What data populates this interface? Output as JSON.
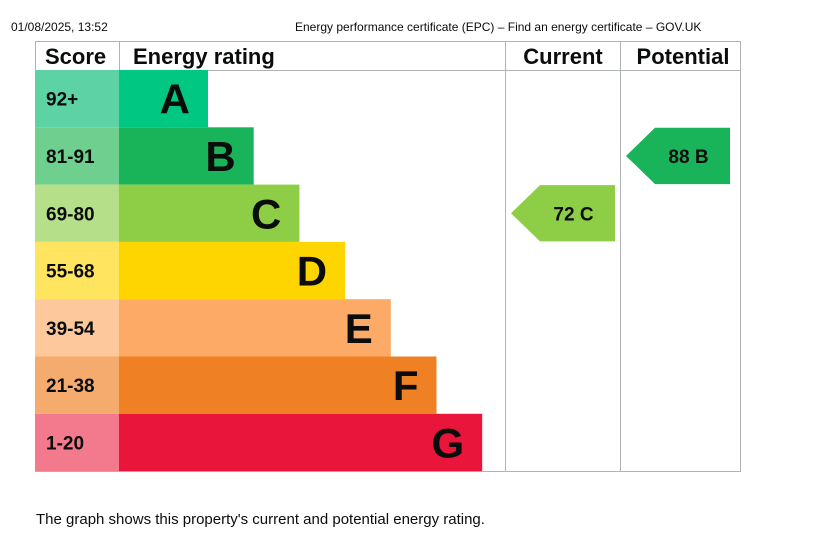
{
  "print_header": {
    "date": "01/08/2025, 13:52",
    "title": "Energy performance certificate (EPC) – Find an energy certificate – GOV.UK"
  },
  "chart_data": {
    "type": "bar",
    "headers": {
      "score": "Score",
      "rating": "Energy rating",
      "current": "Current",
      "potential": "Potential"
    },
    "bands": [
      {
        "letter": "A",
        "score": "92+",
        "color": "#00c781",
        "score_color": "#5cd2a5"
      },
      {
        "letter": "B",
        "score": "81-91",
        "color": "#19b459",
        "score_color": "#6ecf8e"
      },
      {
        "letter": "C",
        "score": "69-80",
        "color": "#8dce46",
        "score_color": "#b5df89"
      },
      {
        "letter": "D",
        "score": "55-68",
        "color": "#ffd500",
        "score_color": "#ffe45f"
      },
      {
        "letter": "E",
        "score": "39-54",
        "color": "#fcaa65",
        "score_color": "#fdc89c"
      },
      {
        "letter": "F",
        "score": "21-38",
        "color": "#ef8023",
        "score_color": "#f5ab6e"
      },
      {
        "letter": "G",
        "score": "1-20",
        "color": "#e9153b",
        "score_color": "#f37a8d"
      }
    ],
    "current": {
      "value": 72,
      "band": "C",
      "label": "72 C",
      "color": "#8dce46"
    },
    "potential": {
      "value": 88,
      "band": "B",
      "label": "88 B",
      "color": "#19b459"
    }
  },
  "caption": "The graph shows this property's current and potential energy rating."
}
